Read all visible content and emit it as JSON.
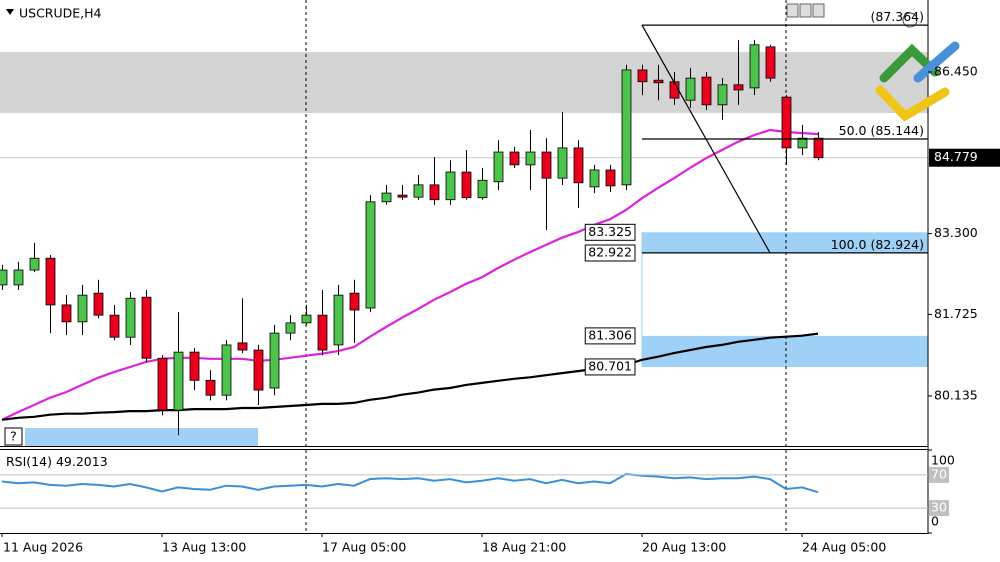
{
  "chart_data": [
    {
      "type": "candlestick",
      "title": "USCRUDE,H4",
      "categories": [
        "11 Aug 2026",
        null,
        null,
        null,
        null,
        null,
        null,
        null,
        null,
        null,
        "13 Aug 13:00",
        null,
        null,
        null,
        null,
        null,
        null,
        null,
        null,
        null,
        "17 Aug 05:00",
        null,
        null,
        null,
        null,
        null,
        null,
        null,
        null,
        null,
        "18 Aug 21:00",
        null,
        null,
        null,
        null,
        null,
        null,
        null,
        null,
        null,
        "20 Aug 13:00",
        null,
        null,
        null,
        null,
        null,
        null,
        null,
        null,
        null,
        "24 Aug 05:00",
        null
      ],
      "open": [
        82.3,
        82.3,
        82.59,
        82.82,
        81.91,
        81.58,
        82.14,
        81.71,
        81.28,
        82.06,
        80.87,
        79.86,
        80.99,
        80.44,
        80.15,
        81.17,
        81.03,
        80.29,
        81.36,
        81.56,
        81.71,
        81.13,
        82.14,
        81.85,
        83.92,
        84.05,
        84.01,
        84.25,
        83.96,
        84.5,
        84.0,
        84.31,
        84.89,
        84.64,
        84.89,
        84.38,
        84.97,
        84.21,
        84.54,
        84.25,
        86.49,
        86.29,
        86.26,
        85.9,
        86.35,
        85.81,
        86.2,
        86.14,
        86.94,
        85.96,
        84.97,
        85.16
      ],
      "high": [
        82.69,
        82.75,
        83.12,
        82.88,
        82.1,
        82.3,
        82.4,
        81.91,
        82.16,
        82.2,
        80.93,
        81.77,
        81.07,
        80.64,
        81.22,
        82.04,
        81.13,
        81.52,
        81.71,
        81.91,
        82.2,
        82.3,
        82.4,
        84.05,
        84.25,
        84.25,
        84.44,
        84.79,
        84.73,
        84.93,
        84.58,
        85.12,
        84.99,
        85.32,
        85.16,
        85.67,
        85.12,
        84.64,
        84.64,
        86.59,
        86.59,
        86.59,
        86.45,
        86.53,
        86.45,
        86.33,
        87.07,
        87.07,
        86.98,
        86.0,
        85.42,
        85.28
      ],
      "low": [
        82.2,
        82.2,
        82.55,
        81.36,
        81.32,
        81.32,
        81.65,
        81.22,
        81.13,
        80.79,
        79.76,
        79.37,
        80.25,
        80.05,
        80.05,
        80.97,
        79.96,
        80.15,
        81.22,
        81.52,
        80.93,
        80.93,
        81.17,
        81.77,
        83.86,
        83.96,
        83.96,
        83.86,
        83.86,
        83.96,
        83.96,
        84.15,
        84.58,
        84.15,
        83.37,
        84.25,
        83.8,
        84.09,
        84.11,
        84.15,
        86.0,
        85.9,
        85.81,
        85.75,
        85.71,
        85.52,
        85.81,
        86.0,
        86.26,
        84.64,
        84.83,
        84.73
      ],
      "close": [
        82.59,
        82.59,
        82.82,
        81.91,
        81.58,
        82.1,
        81.71,
        81.28,
        82.04,
        80.87,
        79.86,
        80.99,
        80.44,
        80.15,
        81.13,
        81.03,
        80.25,
        81.36,
        81.56,
        81.71,
        81.03,
        82.1,
        81.81,
        83.92,
        84.09,
        84.01,
        84.25,
        83.96,
        84.5,
        84.0,
        84.34,
        84.89,
        84.64,
        84.89,
        84.38,
        84.97,
        84.29,
        84.54,
        84.23,
        86.49,
        86.26,
        86.24,
        85.94,
        86.33,
        85.81,
        86.2,
        86.1,
        86.98,
        86.33,
        84.97,
        85.16,
        84.779
      ],
      "up_color": "#4cc44c",
      "down_color": "#e8001c",
      "moving_averages": [
        {
          "color": "#dd22dd",
          "values": [
            79.67,
            79.82,
            79.96,
            80.1,
            80.21,
            80.35,
            80.49,
            80.6,
            80.7,
            80.8,
            80.86,
            80.88,
            80.88,
            80.86,
            80.86,
            80.86,
            80.82,
            80.84,
            80.88,
            80.92,
            80.96,
            81.01,
            81.09,
            81.29,
            81.48,
            81.66,
            81.83,
            82.01,
            82.16,
            82.32,
            82.45,
            82.63,
            82.79,
            82.94,
            83.08,
            83.22,
            83.33,
            83.47,
            83.58,
            83.76,
            83.99,
            84.19,
            84.38,
            84.58,
            84.77,
            84.93,
            85.09,
            85.22,
            85.32,
            85.28,
            85.26,
            85.24
          ]
        },
        {
          "color": "#000000",
          "values": [
            79.67,
            79.71,
            79.73,
            79.77,
            79.79,
            79.79,
            79.81,
            79.82,
            79.84,
            79.84,
            79.86,
            79.86,
            79.88,
            79.88,
            79.88,
            79.9,
            79.9,
            79.92,
            79.94,
            79.96,
            79.98,
            79.98,
            80.0,
            80.06,
            80.1,
            80.16,
            80.2,
            80.26,
            80.29,
            80.35,
            80.39,
            80.43,
            80.47,
            80.5,
            80.54,
            80.58,
            80.62,
            80.66,
            80.7,
            80.74,
            80.84,
            80.9,
            80.97,
            81.03,
            81.09,
            81.13,
            81.19,
            81.23,
            81.27,
            81.29,
            81.31,
            81.35
          ]
        }
      ],
      "ylim": [
        79.16,
        87.853
      ],
      "yticks": [
        {
          "value": 86.45,
          "label": "86.450"
        },
        {
          "value": 83.3,
          "label": "83.300"
        },
        81.725,
        80.135
      ],
      "current_price": 84.779,
      "zones": [
        {
          "color": "#d4d4d4",
          "range": [
            85.65,
            86.84
          ]
        },
        {
          "color": "#9fd0f5",
          "range": [
            79.16,
            79.51
          ],
          "start": 1.44,
          "end": 16
        }
      ],
      "levels": [
        {
          "color": "#9fd0f5",
          "start": 40,
          "prices": [
            83.325,
            82.922
          ]
        },
        {
          "color": "#9fd0f5",
          "start": 40,
          "prices": [
            81.306,
            80.701
          ]
        }
      ],
      "fibonacci": {
        "start": 40,
        "end": 48,
        "levels": [
          {
            "price": 87.364,
            "price_label": "(87.364)"
          },
          {
            "level": "50.0",
            "price": 85.144,
            "price_label": "(85.144)"
          },
          {
            "level": "100.0",
            "price": 82.924,
            "price_label": "(82.924)"
          }
        ]
      },
      "separators": [
        19,
        49
      ]
    },
    {
      "type": "line",
      "title": "RSI(14)",
      "color": "#3a8fd9",
      "values": [
        62,
        60,
        61,
        58,
        57,
        59,
        58,
        56,
        59,
        55,
        50,
        55,
        53,
        52,
        57,
        56,
        52,
        56,
        57,
        58,
        56,
        59,
        57,
        65,
        66,
        65,
        66,
        63,
        65,
        61,
        63,
        66,
        63,
        65,
        60,
        64,
        60,
        62,
        60,
        71,
        69,
        68,
        66,
        67,
        65,
        66,
        66,
        68,
        65,
        53,
        55,
        49.2013
      ],
      "ylim": [
        0,
        100
      ],
      "yticks": [
        100,
        70,
        30,
        0
      ],
      "level_lines": true
    }
  ],
  "ui": {
    "help_button": "?"
  }
}
